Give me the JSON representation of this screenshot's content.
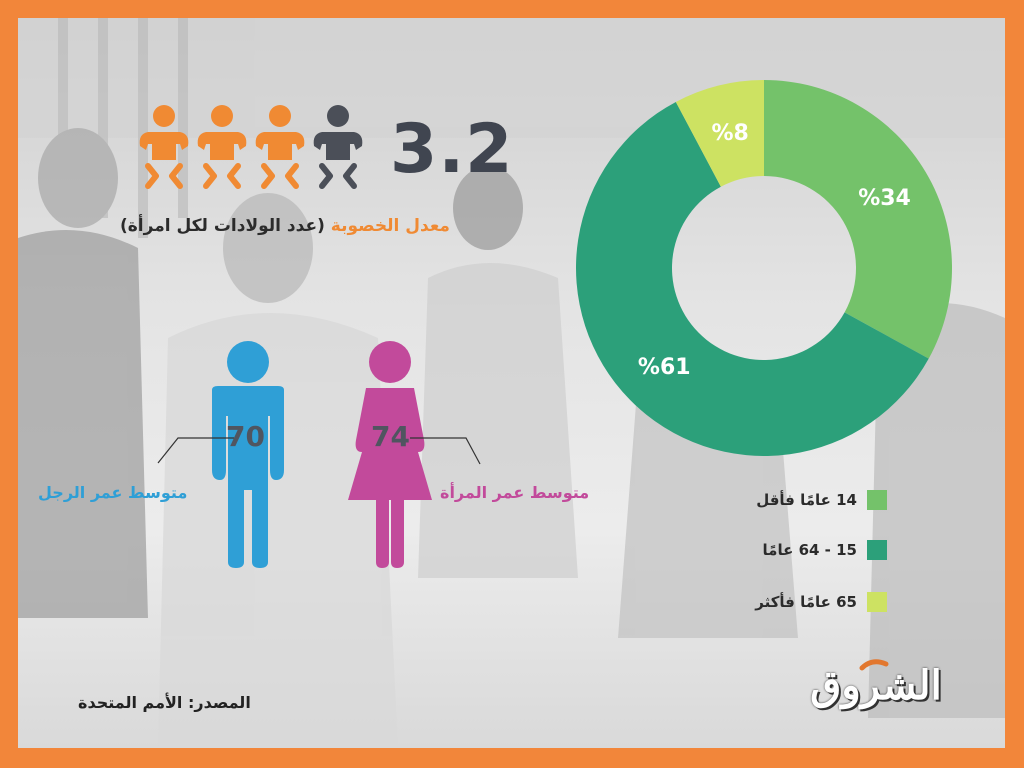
{
  "fertility": {
    "value": "3.2",
    "label_highlight": "معدل الخصوبة",
    "label_rest": " (عدد الولادات لكل امرأة)",
    "icons_full": 3,
    "icons_extra": 1
  },
  "life_expectancy": {
    "men": {
      "label": "متوسط عمر الرجل",
      "value": "70"
    },
    "women": {
      "label": "متوسط عمر المرأة",
      "value": "74"
    }
  },
  "chart_data": {
    "type": "pie",
    "variant": "donut",
    "labels": [
      "14 عامًا فأقل",
      "15 - 64 عامًا",
      "65 عامًا فأكثر"
    ],
    "values": [
      34,
      61,
      8
    ],
    "value_labels": [
      "%34",
      "%61",
      "%8"
    ],
    "colors": [
      "#74c26a",
      "#2ca07a",
      "#cde262"
    ],
    "title": "",
    "legend_position": "bottom-right"
  },
  "source": "المصدر: الأمم المتحدة",
  "logo_text": "الشروق",
  "colors": {
    "frame": "#f2863a",
    "orange": "#f08a33",
    "dark_icon": "#4b4f58",
    "men": "#2f9fd6",
    "women": "#c24a9b"
  }
}
